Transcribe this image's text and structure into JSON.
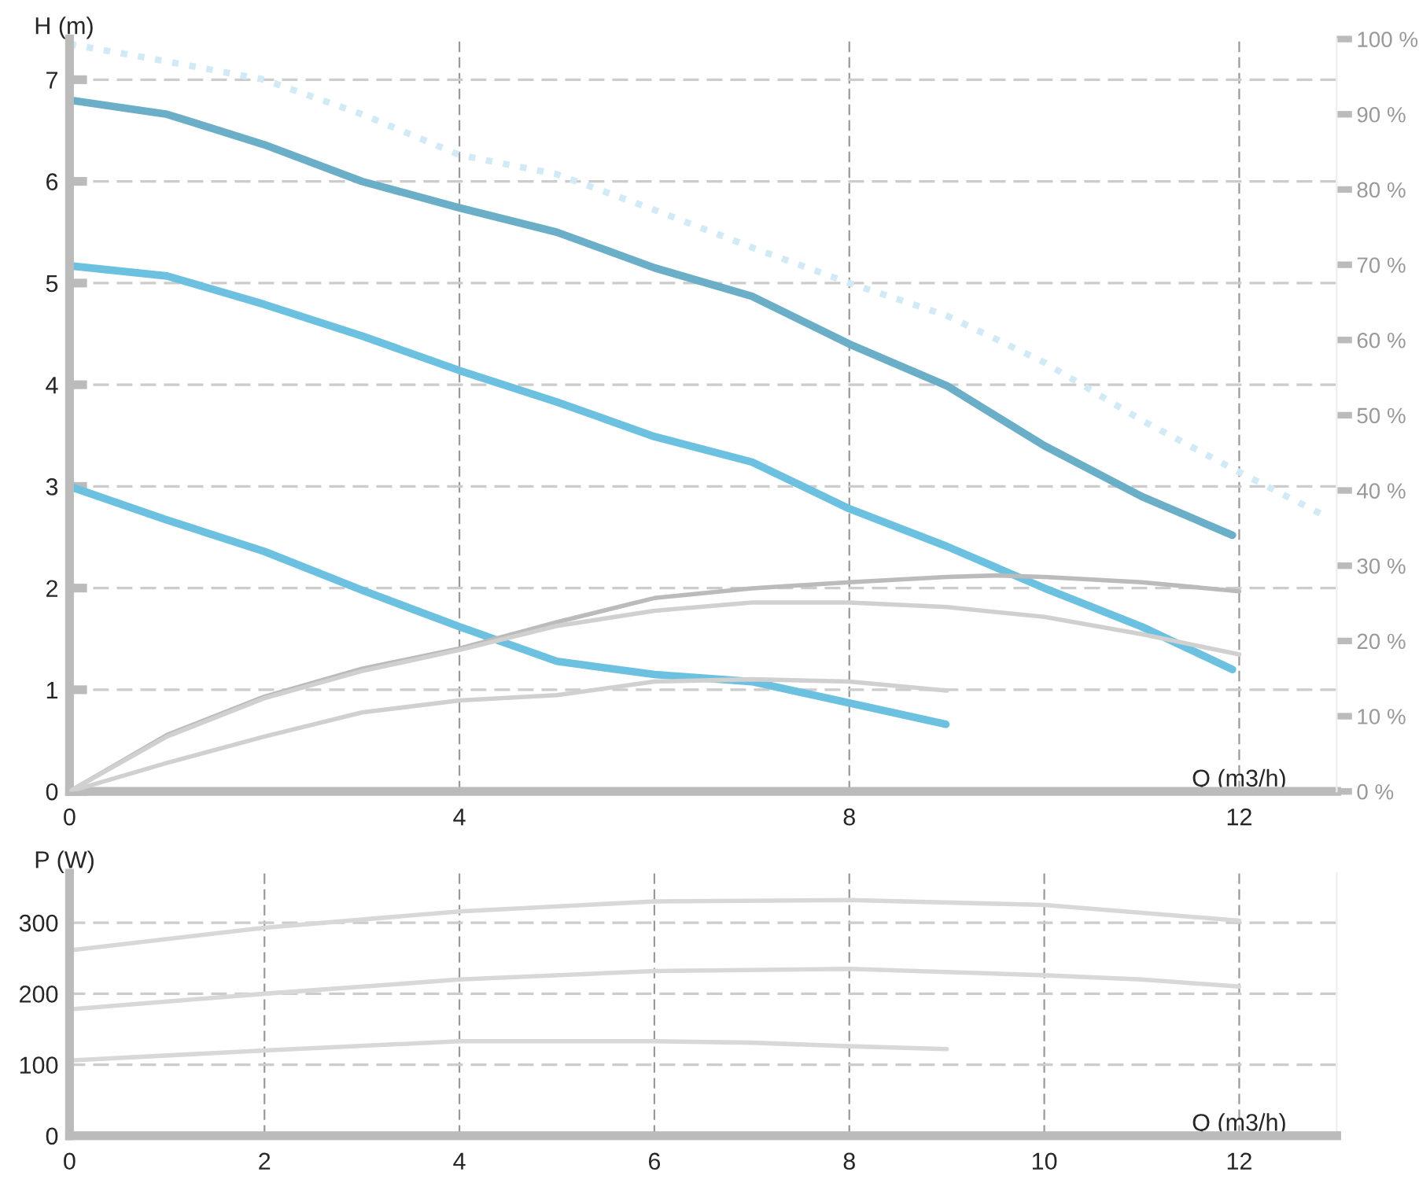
{
  "chart_data": [
    {
      "type": "line",
      "xlabel": "Q (m3/h)",
      "ylabel": "H (m)",
      "xlim": [
        0,
        13
      ],
      "xticks": [
        0,
        4,
        8,
        12
      ],
      "ylim": [
        0,
        7.4
      ],
      "yticks": [
        0,
        1,
        2,
        3,
        4,
        5,
        6,
        7
      ],
      "y2lim": [
        0,
        100
      ],
      "y2ticks": [
        {
          "value": 0,
          "label": "0 %"
        },
        {
          "value": 10,
          "label": "10 %"
        },
        {
          "value": 20,
          "label": "20 %"
        },
        {
          "value": 30,
          "label": "30 %"
        },
        {
          "value": 40,
          "label": "40 %"
        },
        {
          "value": 50,
          "label": "50 %"
        },
        {
          "value": 60,
          "label": "60 %"
        },
        {
          "value": 70,
          "label": "70 %"
        },
        {
          "value": 80,
          "label": "80 %"
        },
        {
          "value": 90,
          "label": "90 %"
        },
        {
          "value": 100,
          "label": "100 %"
        }
      ],
      "grid": true,
      "line_style": "solid",
      "series": [
        {
          "color": "#d2eaf6",
          "line_style": "dotted",
          "x": [
            0,
            1,
            2,
            3,
            4,
            5,
            6,
            7,
            8,
            9,
            10,
            11,
            12,
            12.9
          ],
          "values": [
            7.35,
            7.18,
            7.0,
            6.66,
            6.26,
            6.07,
            5.72,
            5.35,
            5.0,
            4.68,
            4.22,
            3.65,
            3.14,
            2.7
          ]
        },
        {
          "color": "#6aaec8",
          "x": [
            0,
            1,
            1.5,
            2,
            3,
            4,
            5,
            6,
            7,
            8,
            9,
            10,
            11,
            11.93
          ],
          "values": [
            6.8,
            6.66,
            6.51,
            6.36,
            6.0,
            5.74,
            5.5,
            5.15,
            4.87,
            4.4,
            3.99,
            3.4,
            2.9,
            2.52
          ]
        },
        {
          "color": "#6cc0e0",
          "x": [
            0,
            1,
            2,
            3,
            4,
            5,
            6,
            7,
            8,
            9,
            10,
            11,
            11.93
          ],
          "values": [
            5.17,
            5.07,
            4.79,
            4.48,
            4.14,
            3.83,
            3.49,
            3.24,
            2.78,
            2.41,
            2.0,
            1.62,
            1.2
          ]
        },
        {
          "color": "#6cc0e0",
          "x": [
            0,
            1,
            2,
            3,
            4,
            5,
            6,
            7,
            8,
            8.99
          ],
          "values": [
            3.0,
            2.67,
            2.36,
            1.98,
            1.62,
            1.28,
            1.15,
            1.08,
            0.87,
            0.66
          ]
        },
        {
          "color": "#bbbbbb",
          "axis": "y2",
          "x": [
            0,
            1,
            2,
            3,
            4,
            5,
            6,
            7,
            8,
            9,
            9.5,
            10,
            11,
            12
          ],
          "values": [
            0,
            7.5,
            12.6,
            16.3,
            19.0,
            22.5,
            25.7,
            27.0,
            27.8,
            28.5,
            28.7,
            28.5,
            27.8,
            26.6
          ]
        },
        {
          "color": "#d0d0d0",
          "axis": "y2",
          "x": [
            0,
            1,
            2,
            3,
            4,
            5,
            6,
            7,
            8,
            9,
            10,
            11,
            12
          ],
          "values": [
            0,
            7.3,
            12.4,
            16.0,
            18.8,
            22.0,
            24.0,
            25.1,
            25.1,
            24.5,
            23.2,
            20.9,
            18.2
          ]
        },
        {
          "color": "#d0d0d0",
          "axis": "y2",
          "x": [
            0,
            1,
            2,
            3,
            4,
            5,
            6,
            7,
            8,
            9
          ],
          "values": [
            0,
            3.8,
            7.3,
            10.5,
            12.1,
            12.8,
            14.6,
            14.9,
            14.6,
            13.4
          ]
        }
      ]
    },
    {
      "type": "line",
      "xlabel": "Q (m3/h)",
      "ylabel": "P (W)",
      "xlim": [
        0,
        13
      ],
      "xticks": [
        0,
        2,
        4,
        6,
        8,
        10,
        12
      ],
      "ylim": [
        0,
        370
      ],
      "yticks": [
        0,
        100,
        200,
        300
      ],
      "grid": true,
      "line_style": "solid",
      "series": [
        {
          "color": "#d8d8d8",
          "x": [
            0,
            2,
            4,
            6,
            8,
            10,
            11,
            12
          ],
          "values": [
            261,
            293,
            316,
            330,
            332,
            325,
            314,
            303
          ]
        },
        {
          "color": "#d8d8d8",
          "x": [
            0,
            2,
            4,
            6,
            8,
            10,
            11,
            12
          ],
          "values": [
            178,
            200,
            220,
            232,
            235,
            226,
            220,
            210
          ]
        },
        {
          "color": "#d8d8d8",
          "x": [
            0,
            2,
            4,
            6,
            7,
            8,
            9
          ],
          "values": [
            106,
            120,
            133,
            133,
            131,
            126,
            122
          ]
        }
      ]
    }
  ]
}
